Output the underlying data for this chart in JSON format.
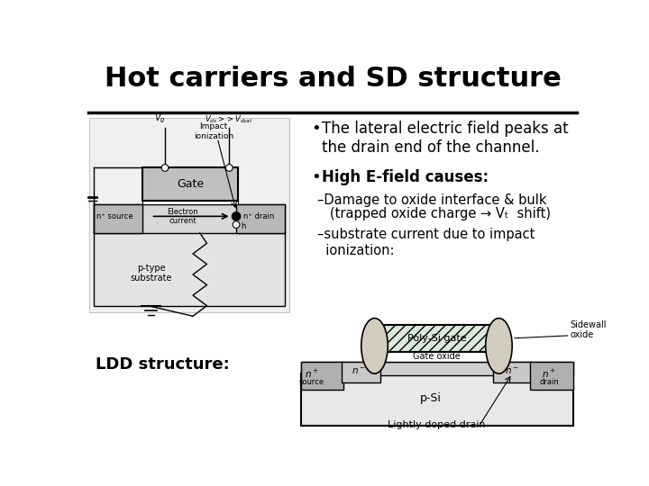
{
  "title": "Hot carriers and SD structure",
  "title_fontsize": 22,
  "title_fontweight": "bold",
  "bg_color": "#ffffff",
  "text_color": "#000000",
  "bullet1": "The lateral electric field peaks at\nthe drain end of the channel.",
  "bullet2": "High E-field causes:",
  "sub1a": "–Damage to oxide interface & bulk",
  "sub1b": "   (trapped oxide charge → Vₜ  shift)",
  "sub2": "–substrate current due to impact\n  ionization:",
  "ldd_label": "LDD structure:"
}
